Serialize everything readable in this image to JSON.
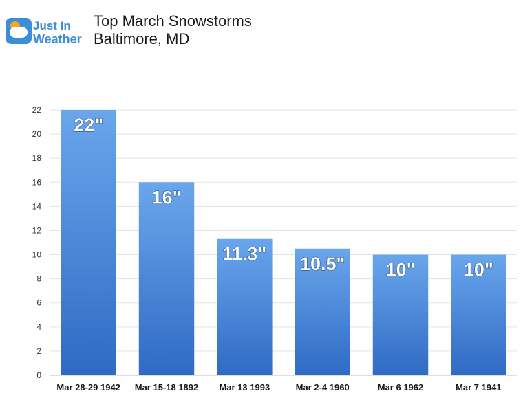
{
  "brand": {
    "line1": "Just In",
    "line2": "Weather",
    "color": "#3c8ed8",
    "sun_color": "#f5a623"
  },
  "chart_data": {
    "type": "bar",
    "title": "Top March Snowstorms",
    "subtitle": "Baltimore, MD",
    "xlabel": "",
    "ylabel": "",
    "categories": [
      "Mar 28-29 1942",
      "Mar 15-18 1892",
      "Mar 13 1993",
      "Mar 2-4 1960",
      "Mar 6 1962",
      "Mar 7 1941"
    ],
    "values": [
      22,
      16,
      11.3,
      10.5,
      10,
      10
    ],
    "data_labels": [
      "22\"",
      "16\"",
      "11.3\"",
      "10.5\"",
      "10\"",
      "10\""
    ],
    "ylim": [
      0,
      22
    ],
    "yticks": [
      0,
      2,
      4,
      6,
      8,
      10,
      12,
      14,
      16,
      18,
      20,
      22
    ],
    "grid": true,
    "legend": "none",
    "bar_color_top": "#6aa6ec",
    "bar_color_bottom": "#2f6ac4",
    "grid_color": "#e3e3e3"
  }
}
